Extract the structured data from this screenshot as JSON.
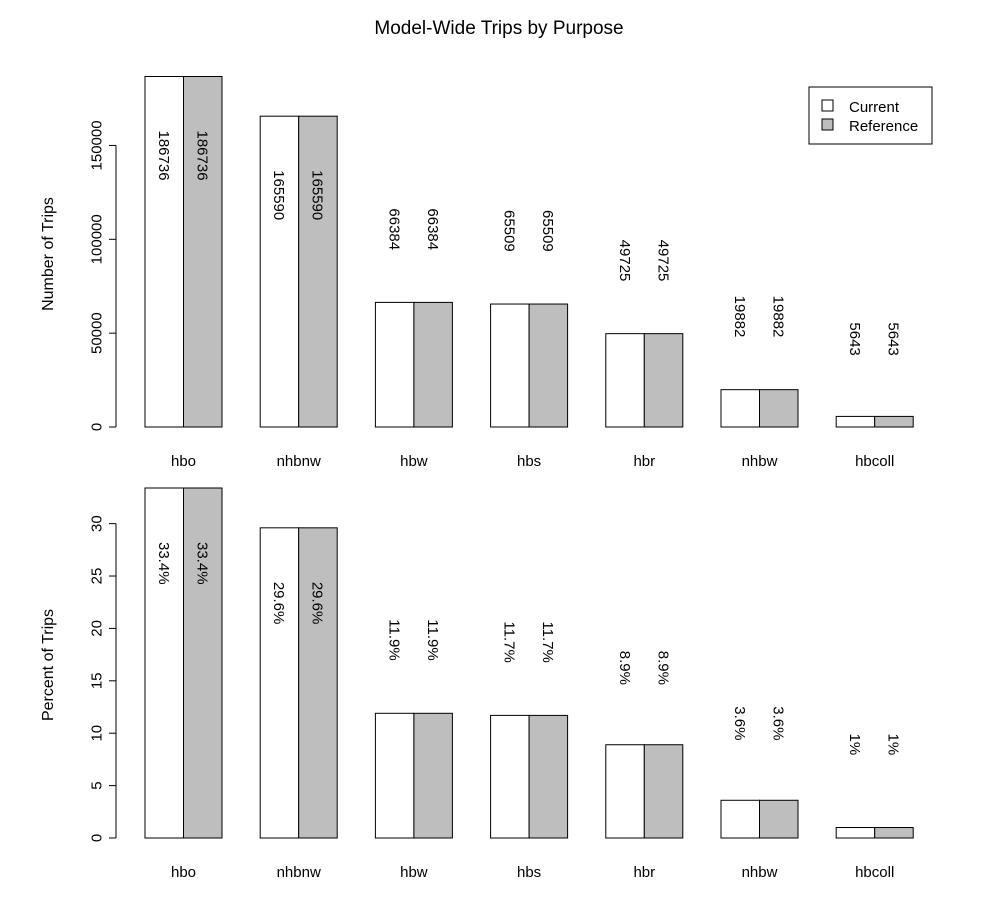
{
  "colors": {
    "current": "#ffffff",
    "reference": "#bebebe",
    "stroke": "#000000"
  },
  "chart_data": [
    {
      "type": "bar",
      "title": "Model-Wide Trips by Purpose",
      "xlabel": "",
      "ylabel": "Number of Trips",
      "ylim": [
        0,
        187000
      ],
      "yticks": [
        0,
        50000,
        100000,
        150000
      ],
      "categories": [
        "hbo",
        "nhbnw",
        "hbw",
        "hbs",
        "hbr",
        "nhbw",
        "hbcoll"
      ],
      "series": [
        {
          "name": "Current",
          "values": [
            186736,
            165590,
            66384,
            65509,
            49725,
            19882,
            5643
          ],
          "labels": [
            "186736",
            "165590",
            "66384",
            "65509",
            "49725",
            "19882",
            "5643"
          ]
        },
        {
          "name": "Reference",
          "values": [
            186736,
            165590,
            66384,
            65509,
            49725,
            19882,
            5643
          ],
          "labels": [
            "186736",
            "165590",
            "66384",
            "65509",
            "49725",
            "19882",
            "5643"
          ]
        }
      ],
      "legend": "top-right",
      "grid": false
    },
    {
      "type": "bar",
      "title": "",
      "xlabel": "",
      "ylabel": "Percent of Trips",
      "ylim": [
        0,
        33.4
      ],
      "yticks": [
        0,
        5,
        10,
        15,
        20,
        25,
        30
      ],
      "categories": [
        "hbo",
        "nhbnw",
        "hbw",
        "hbs",
        "hbr",
        "nhbw",
        "hbcoll"
      ],
      "series": [
        {
          "name": "Current",
          "values": [
            33.4,
            29.6,
            11.9,
            11.7,
            8.9,
            3.6,
            1
          ],
          "labels": [
            "33.4%",
            "29.6%",
            "11.9%",
            "11.7%",
            "8.9%",
            "3.6%",
            "1%"
          ]
        },
        {
          "name": "Reference",
          "values": [
            33.4,
            29.6,
            11.9,
            11.7,
            8.9,
            3.6,
            1
          ],
          "labels": [
            "33.4%",
            "29.6%",
            "11.9%",
            "11.7%",
            "8.9%",
            "3.6%",
            "1%"
          ]
        }
      ],
      "grid": false
    }
  ]
}
